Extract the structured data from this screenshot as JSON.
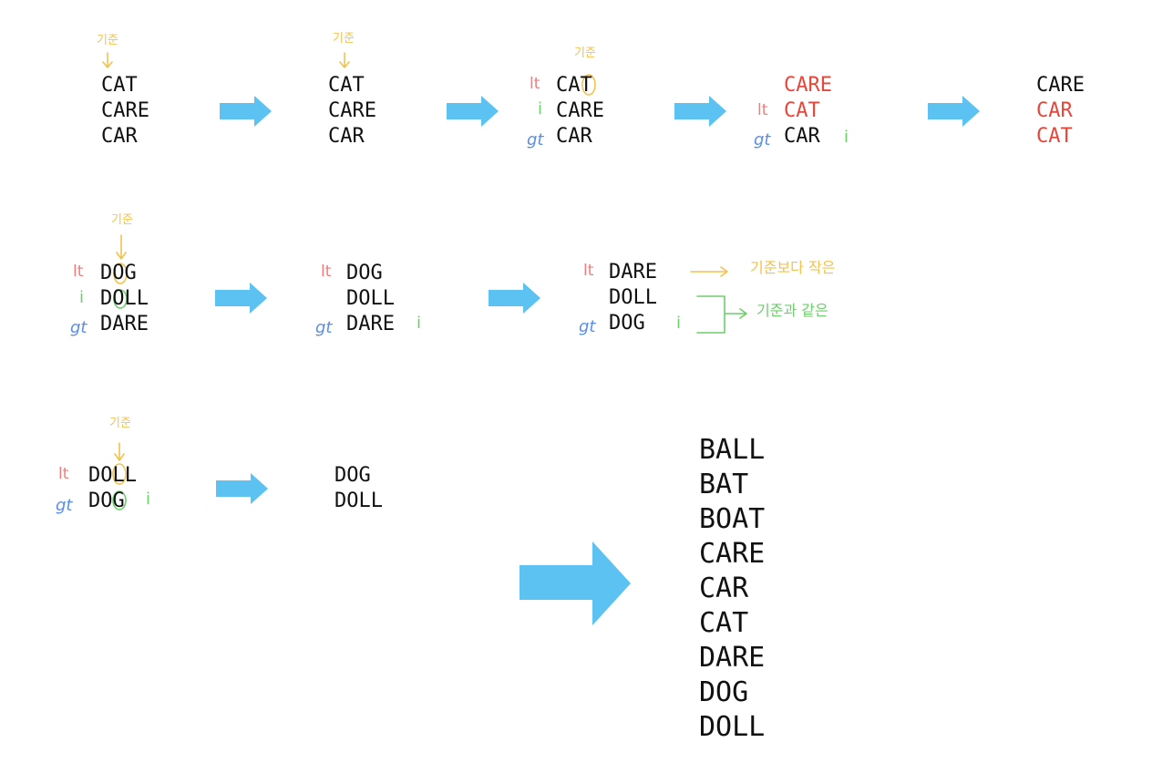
{
  "colors": {
    "arrow": "#5bc2f2",
    "lt": "#f07c7c",
    "gt": "#5a8ee8",
    "i": "#6ccf6a",
    "pivot": "#f2c24f",
    "moved": "#e8463a"
  },
  "marker_labels": {
    "lt": "lt",
    "gt": "gt",
    "i": "i"
  },
  "pivot_label": "기준",
  "row1": {
    "s1": [
      "CAT",
      "CARE",
      "CAR"
    ],
    "s2": [
      "CAT",
      "CARE",
      "CAR"
    ],
    "s3": [
      "CAT",
      "CARE",
      "CAR"
    ],
    "s4": [
      "CARE",
      "CAT",
      "CAR"
    ],
    "s5": [
      "CARE",
      "CAR",
      "CAT"
    ]
  },
  "row2": {
    "s1": [
      "DOG",
      "DOLL",
      "DARE"
    ],
    "s2": [
      "DOG",
      "DOLL",
      "DARE"
    ],
    "s3": [
      "DARE",
      "DOLL",
      "DOG"
    ],
    "note_less": "기준보다 작은",
    "note_equal": "기준과 같은"
  },
  "row3": {
    "s1": [
      "DOLL",
      "DOG"
    ],
    "s2": [
      "DOG",
      "DOLL"
    ]
  },
  "result": [
    "BALL",
    "BAT",
    "BOAT",
    "CARE",
    "CAR",
    "CAT",
    "DARE",
    "DOG",
    "DOLL"
  ]
}
